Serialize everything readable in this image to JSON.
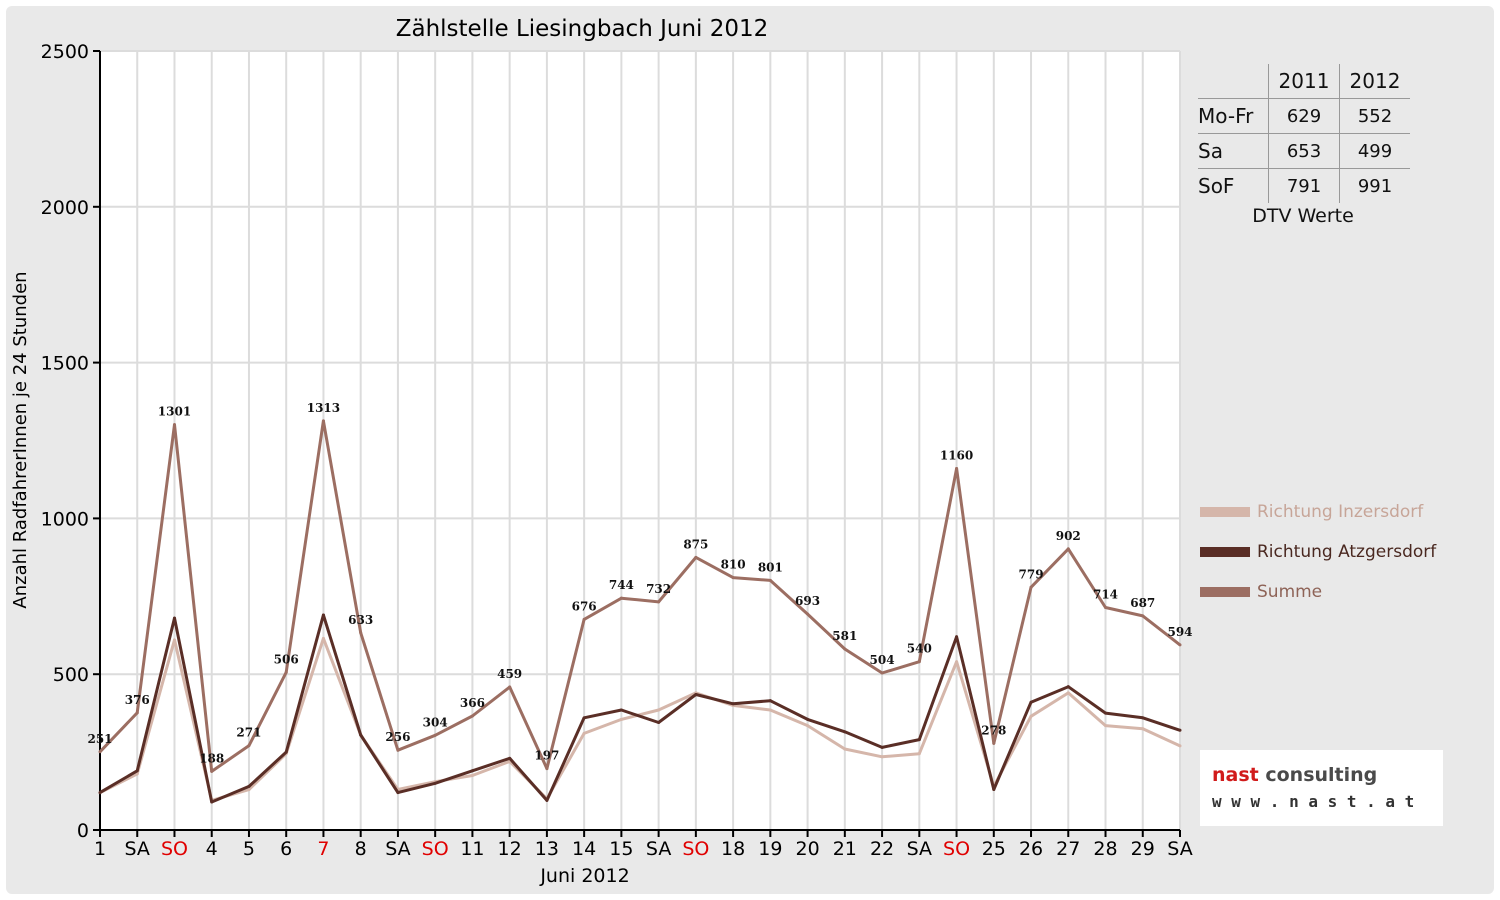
{
  "chart_data": {
    "type": "line",
    "title": "Zählstelle Liesingbach Juni 2012",
    "xlabel": "Juni 2012",
    "ylabel": "Anzahl RadfahrerInnen je 24 Stunden",
    "ylim": [
      0,
      2500
    ],
    "yticks": [
      0,
      500,
      1000,
      1500,
      2000,
      2500
    ],
    "grid": true,
    "legend_position": "right",
    "categories": [
      "1",
      "SA",
      "SO",
      "4",
      "5",
      "6",
      "7",
      "8",
      "SA",
      "SO",
      "11",
      "12",
      "13",
      "14",
      "15",
      "SA",
      "SO",
      "18",
      "19",
      "20",
      "21",
      "22",
      "SA",
      "SO",
      "25",
      "26",
      "27",
      "28",
      "29",
      "SA"
    ],
    "red_categories": [
      2,
      6,
      9,
      16,
      23
    ],
    "series": [
      {
        "name": "Richtung Inzersdorf",
        "color": "#d5b6aa",
        "values": [
          120,
          180,
          610,
          95,
          130,
          245,
          615,
          305,
          130,
          155,
          175,
          220,
          100,
          310,
          355,
          385,
          440,
          400,
          385,
          335,
          260,
          235,
          245,
          540,
          140,
          365,
          440,
          335,
          325,
          270
        ]
      },
      {
        "name": "Richtung Atzgersdorf",
        "color": "#5a2e26",
        "values": [
          120,
          190,
          680,
          90,
          140,
          250,
          690,
          305,
          120,
          150,
          190,
          230,
          95,
          360,
          385,
          345,
          435,
          405,
          415,
          355,
          315,
          265,
          290,
          620,
          130,
          410,
          460,
          375,
          360,
          320
        ]
      },
      {
        "name": "Summe",
        "color": "#9c6e62",
        "values": [
          251,
          376,
          1301,
          188,
          271,
          506,
          1313,
          633,
          256,
          304,
          366,
          459,
          197,
          676,
          744,
          732,
          875,
          810,
          801,
          693,
          581,
          504,
          540,
          1160,
          278,
          779,
          902,
          714,
          687,
          594
        ],
        "data_labels": [
          "251",
          "376",
          "1301",
          "188",
          "271",
          "506",
          "1313",
          "633",
          "256",
          "304",
          "366",
          "459",
          "197",
          "676",
          "744",
          "732",
          "875",
          "810",
          "801",
          "693",
          "581",
          "504",
          "540",
          "1160",
          "278",
          "779",
          "902",
          "714",
          "687",
          "594"
        ]
      }
    ]
  },
  "dtv_table": {
    "headers": [
      "2011",
      "2012"
    ],
    "rows": [
      {
        "label": "Mo-Fr",
        "v2011": "629",
        "v2012": "552"
      },
      {
        "label": "Sa",
        "v2011": "653",
        "v2012": "499"
      },
      {
        "label": "SoF",
        "v2011": "791",
        "v2012": "991"
      }
    ],
    "caption": "DTV Werte"
  },
  "logo": {
    "name_accent": "nast",
    "name_rest": " consulting",
    "url": "w w w . n a s t . a t"
  }
}
